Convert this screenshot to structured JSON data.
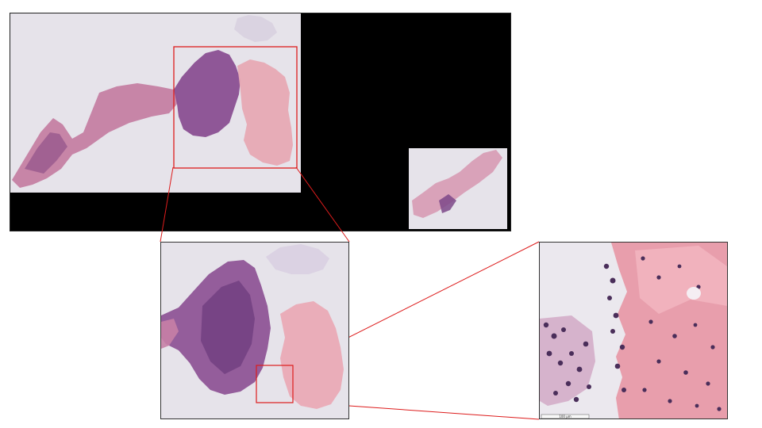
{
  "figure": {
    "description_hidden": "",
    "scale_bar_text": "100 µm"
  },
  "colors": {
    "background": "#ffffff",
    "slide_bg": "#000000",
    "tissue_bg": "#e6e3ea",
    "stain_pink": "#e39aa8",
    "stain_purple": "#7b4c8c",
    "nucleus": "#4a2e5a",
    "highlight_box": "#dd1c1c"
  }
}
